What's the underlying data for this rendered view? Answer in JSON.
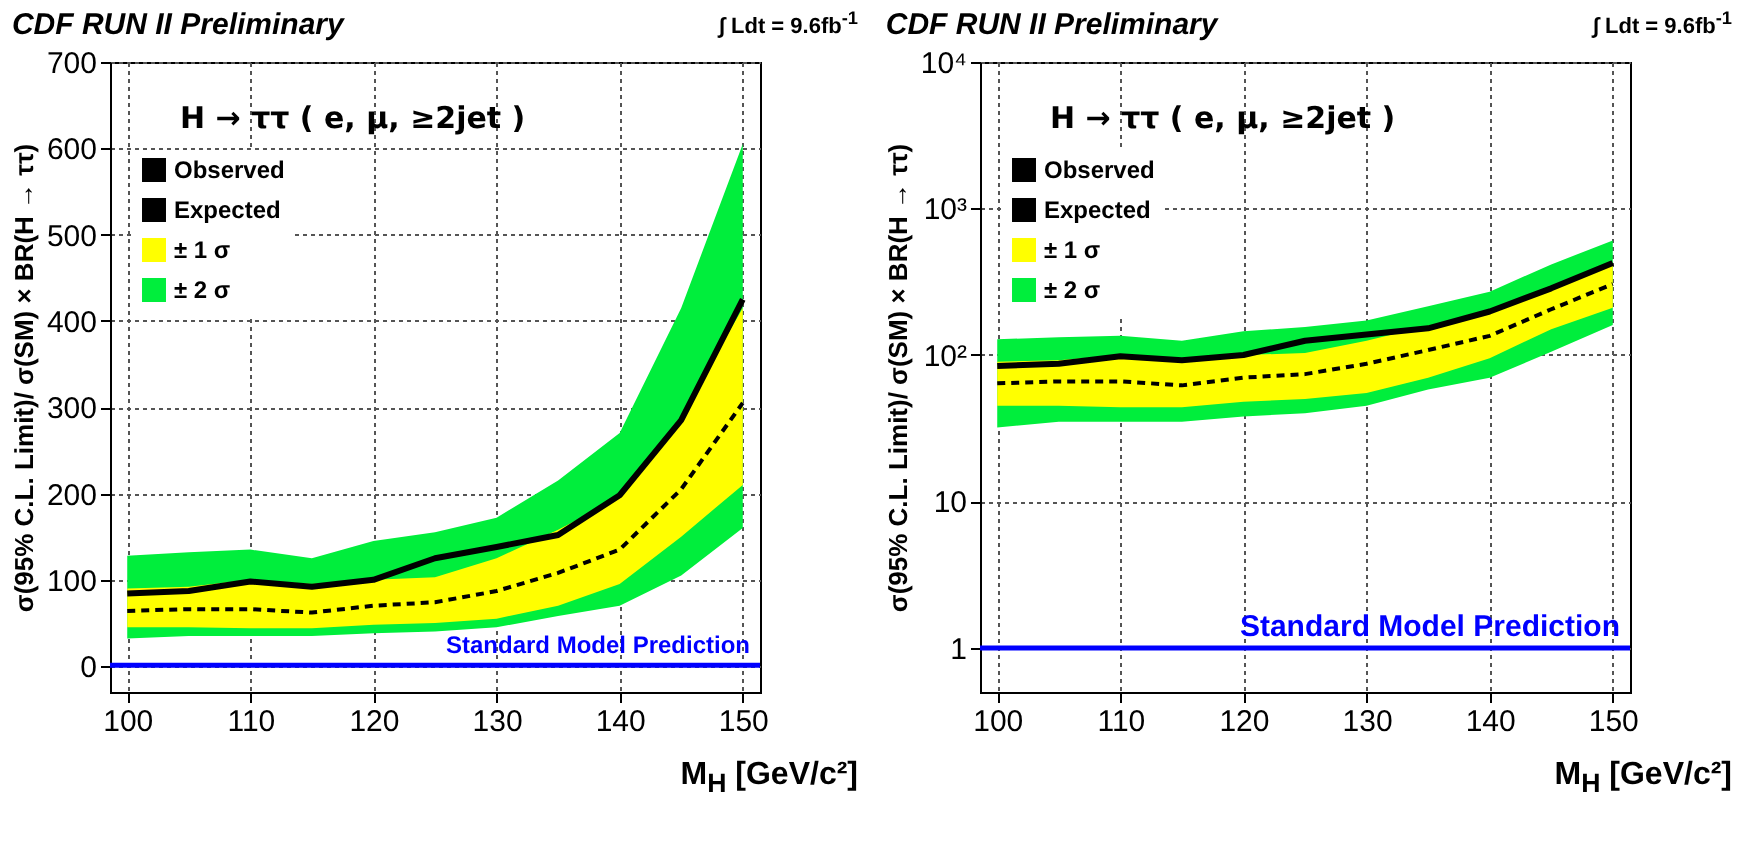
{
  "chart_data": [
    {
      "type": "line",
      "title": "CDF RUN II Preliminary",
      "xlabel": "M$_{H}$ [GeV/c²]",
      "ylabel": "σ(95% C.L. Limit)/  σ(SM) × BR(H → ττ)",
      "annotations": [
        "H → ττ  ( e, μ, ≥2jet )",
        "∫ Ldt = 9.6fb$^{-1}$"
      ],
      "x": [
        100,
        105,
        110,
        115,
        120,
        125,
        130,
        135,
        140,
        145,
        150
      ],
      "series": [
        {
          "name": "Observed",
          "color": "#000000",
          "line_style": "solid",
          "values": [
            84,
            87,
            98,
            92,
            100,
            125,
            138,
            152,
            198,
            285,
            425
          ]
        },
        {
          "name": "Expected",
          "color": "#000000",
          "line_style": "dashed",
          "values": [
            64,
            66,
            66,
            62,
            70,
            74,
            87,
            108,
            135,
            205,
            305
          ]
        },
        {
          "name": "± 1 σ",
          "type": "area",
          "color": "#ffff00",
          "values": [
            null,
            null,
            null,
            null,
            null,
            null,
            null,
            null,
            null,
            null,
            null
          ],
          "lower": [
            45,
            45,
            44,
            44,
            48,
            50,
            55,
            70,
            95,
            150,
            210
          ],
          "upper": [
            90,
            92,
            100,
            95,
            100,
            103,
            125,
            158,
            195,
            290,
            415
          ]
        },
        {
          "name": "± 2 σ",
          "type": "area",
          "color": "#00ee3c",
          "values": [
            null,
            null,
            null,
            null,
            null,
            null,
            null,
            null,
            null,
            null,
            null
          ],
          "lower": [
            32,
            35,
            35,
            35,
            38,
            40,
            45,
            58,
            70,
            105,
            160
          ],
          "upper": [
            128,
            132,
            135,
            125,
            145,
            155,
            172,
            215,
            270,
            415,
            605
          ]
        }
      ],
      "xlim": [
        98.6,
        151.4
      ],
      "ylim": [
        -30,
        700
      ],
      "xticks": [
        100,
        110,
        120,
        130,
        140,
        150
      ],
      "yticks": [
        0,
        100,
        200,
        300,
        400,
        500,
        600,
        700
      ],
      "ref_lines": [
        {
          "axis": "y",
          "value": 1,
          "label": "Standard Model Prediction",
          "color": "#0000ff"
        }
      ],
      "grid": true,
      "legend": "top left"
    },
    {
      "type": "line",
      "title": "CDF RUN II Preliminary",
      "xlabel": "M$_{H}$ [GeV/c²]",
      "ylabel": "σ(95% C.L. Limit)/  σ(SM) × BR(H → ττ)",
      "annotations": [
        "H → ττ  ( e, μ, ≥2jet )",
        "∫ Ldt = 9.6fb$^{-1}$"
      ],
      "x": [
        100,
        105,
        110,
        115,
        120,
        125,
        130,
        135,
        140,
        145,
        150
      ],
      "series": [
        {
          "name": "Observed",
          "color": "#000000",
          "line_style": "solid",
          "values": [
            84,
            87,
            98,
            92,
            100,
            125,
            138,
            152,
            198,
            285,
            425
          ]
        },
        {
          "name": "Expected",
          "color": "#000000",
          "line_style": "dashed",
          "values": [
            64,
            66,
            66,
            62,
            70,
            74,
            87,
            108,
            135,
            205,
            305
          ]
        },
        {
          "name": "± 1 σ",
          "type": "area",
          "color": "#ffff00",
          "values": [
            null,
            null,
            null,
            null,
            null,
            null,
            null,
            null,
            null,
            null,
            null
          ],
          "lower": [
            45,
            45,
            44,
            44,
            48,
            50,
            55,
            70,
            95,
            150,
            210
          ],
          "upper": [
            90,
            92,
            100,
            95,
            100,
            103,
            125,
            158,
            195,
            290,
            415
          ]
        },
        {
          "name": "± 2 σ",
          "type": "area",
          "color": "#00ee3c",
          "values": [
            null,
            null,
            null,
            null,
            null,
            null,
            null,
            null,
            null,
            null,
            null
          ],
          "lower": [
            32,
            35,
            35,
            35,
            38,
            40,
            45,
            58,
            70,
            105,
            160
          ],
          "upper": [
            128,
            132,
            135,
            125,
            145,
            155,
            172,
            215,
            270,
            415,
            605
          ]
        }
      ],
      "xlim": [
        98.6,
        151.4
      ],
      "ylim": [
        0.5,
        10000
      ],
      "xticks": [
        100,
        110,
        120,
        130,
        140,
        150
      ],
      "yticks": [
        1,
        10,
        {
          "value": 100,
          "label": "10²"
        },
        {
          "value": 1000,
          "label": "10³"
        },
        {
          "value": 10000,
          "label": "10⁴"
        }
      ],
      "ref_lines": [
        {
          "axis": "y",
          "value": 1,
          "label": "Standard Model Prediction",
          "color": "#0000ff"
        }
      ],
      "grid": true,
      "legend": "top left",
      "log": true
    }
  ]
}
